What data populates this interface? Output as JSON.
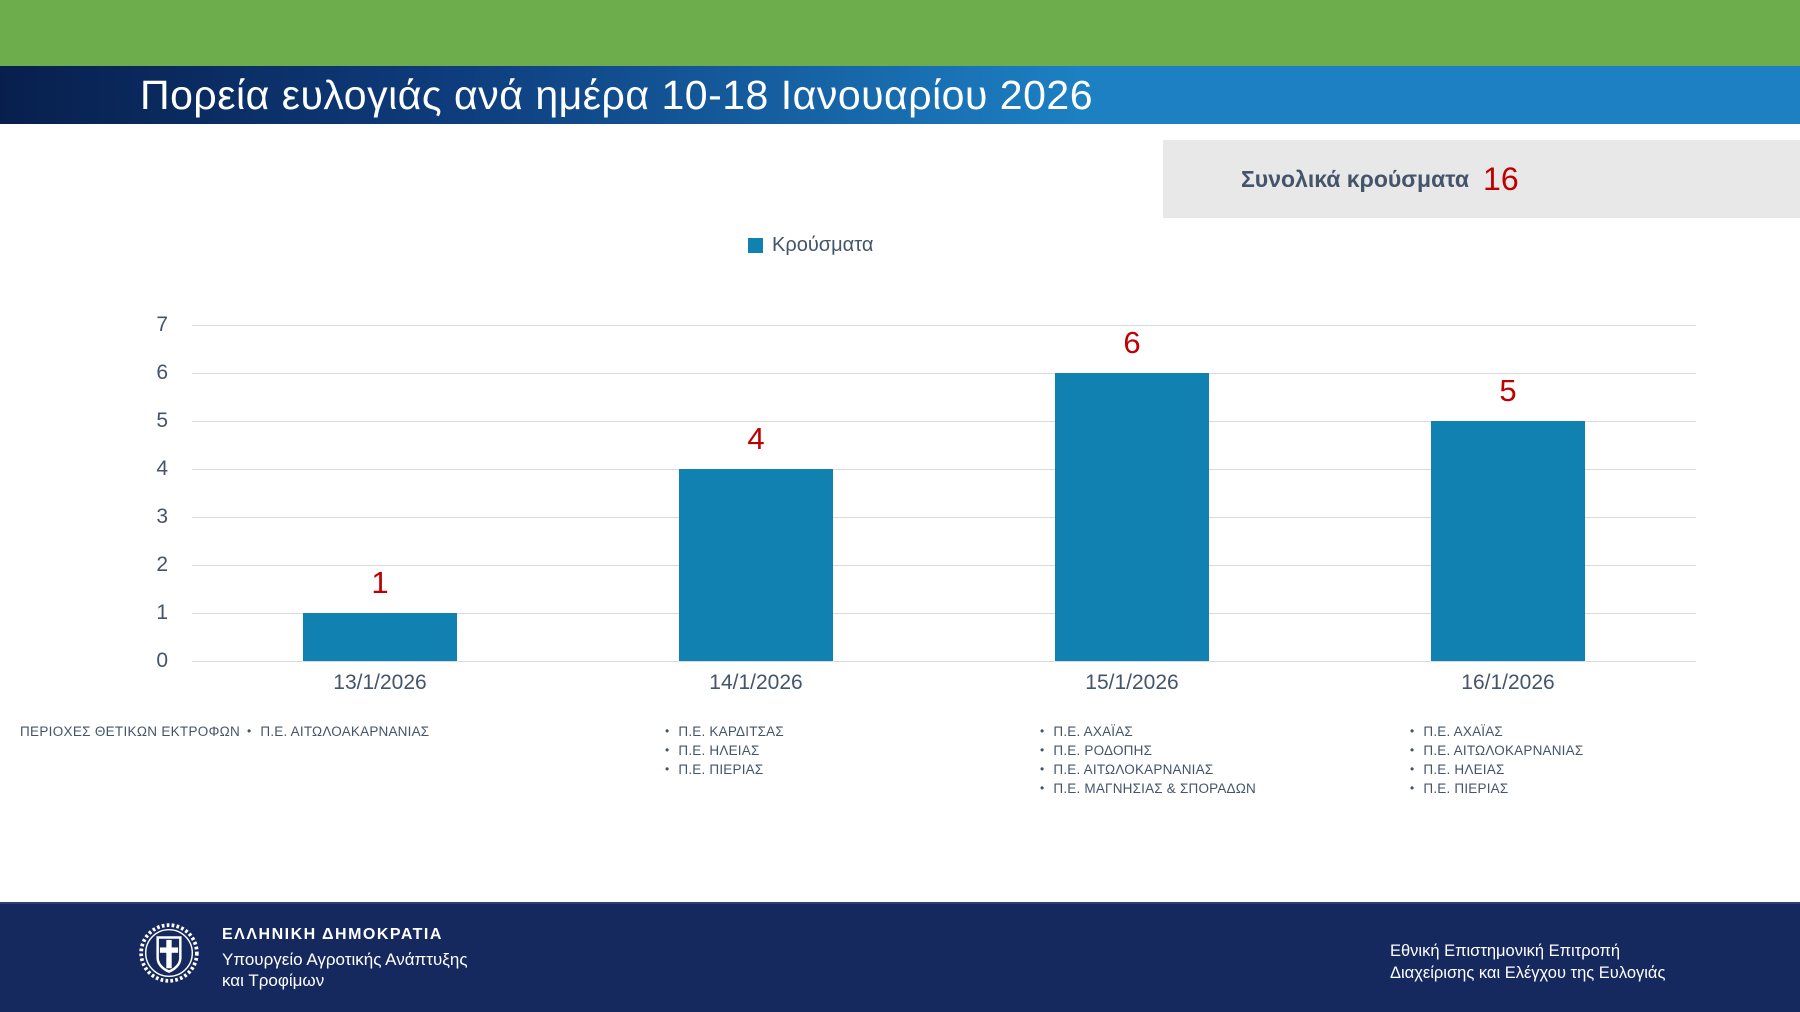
{
  "header": {
    "title": "Πορεία ευλογιάς ανά ημέρα 10-18 Ιανουαρίου 2026",
    "top_bar_color": "#6EAD4B",
    "band_gradient": [
      "#081F4D",
      "#1C80C3"
    ]
  },
  "totals": {
    "label": "Συνολικά κρούσματα",
    "value": 16,
    "value_color": "#C00000",
    "box_color": "#E8E8E8"
  },
  "chart_data": {
    "type": "bar",
    "title": "Πορεία ευλογιάς ανά ημέρα 10-18 Ιανουαρίου 2026",
    "categories": [
      "13/1/2026",
      "14/1/2026",
      "15/1/2026",
      "16/1/2026"
    ],
    "series": [
      {
        "name": "Κρούσματα",
        "values": [
          1,
          4,
          6,
          5
        ]
      }
    ],
    "value_labels": [
      1,
      4,
      6,
      5
    ],
    "ylim": [
      0,
      7
    ],
    "yticks": [
      0,
      1,
      2,
      3,
      4,
      5,
      6,
      7
    ],
    "grid": true,
    "legend": {
      "label": "Κρούσματα",
      "position": "top-center"
    },
    "colors": {
      "bar": "#1081B1",
      "value_label": "#C00000",
      "axis_text": "#44546A",
      "gridline": "#D9D9D9"
    }
  },
  "regions": {
    "heading": "ΠΕΡΙΟΧΕΣ ΘΕΤΙΚΩΝ ΕΚΤΡΟΦΩΝ",
    "bullet": "•",
    "columns": [
      {
        "category": "13/1/2026",
        "items": [
          "Π.Ε. ΑΙΤΩΛΟΑΚΑΡΝΑΝΙΑΣ"
        ]
      },
      {
        "category": "14/1/2026",
        "items": [
          "Π.Ε. ΚΑΡΔΙΤΣΑΣ",
          "Π.Ε. ΗΛΕΙΑΣ",
          "Π.Ε. ΠΙΕΡΙΑΣ"
        ]
      },
      {
        "category": "15/1/2026",
        "items": [
          "Π.Ε. ΑΧΑΪΑΣ",
          "Π.Ε. ΡΟΔΟΠΗΣ",
          "Π.Ε. ΑΙΤΩΛΟΚΑΡΝΑΝΙΑΣ",
          "Π.Ε. ΜΑΓΝΗΣΙΑΣ & ΣΠΟΡΑΔΩΝ"
        ]
      },
      {
        "category": "16/1/2026",
        "items": [
          "Π.Ε. ΑΧΑΪΑΣ",
          "Π.Ε. ΑΙΤΩΛΟΚΑΡΝΑΝΙΑΣ",
          "Π.Ε. ΗΛΕΙΑΣ",
          "Π.Ε. ΠΙΕΡΙΑΣ"
        ]
      }
    ]
  },
  "footer": {
    "logo_icon": "hellenic-coat-of-arms-icon",
    "org_name": "ΕΛΛΗΝΙΚΗ ΔΗΜΟΚΡΑΤΙΑ",
    "ministry_line1": "Υπουργείο Αγροτικής Ανάπτυξης",
    "ministry_line2": "και Τροφίμων",
    "committee_line1": "Εθνική Επιστημονική Επιτροπή",
    "committee_line2": "Διαχείρισης και Ελέγχου της Ευλογιάς",
    "background": "#16295F"
  }
}
